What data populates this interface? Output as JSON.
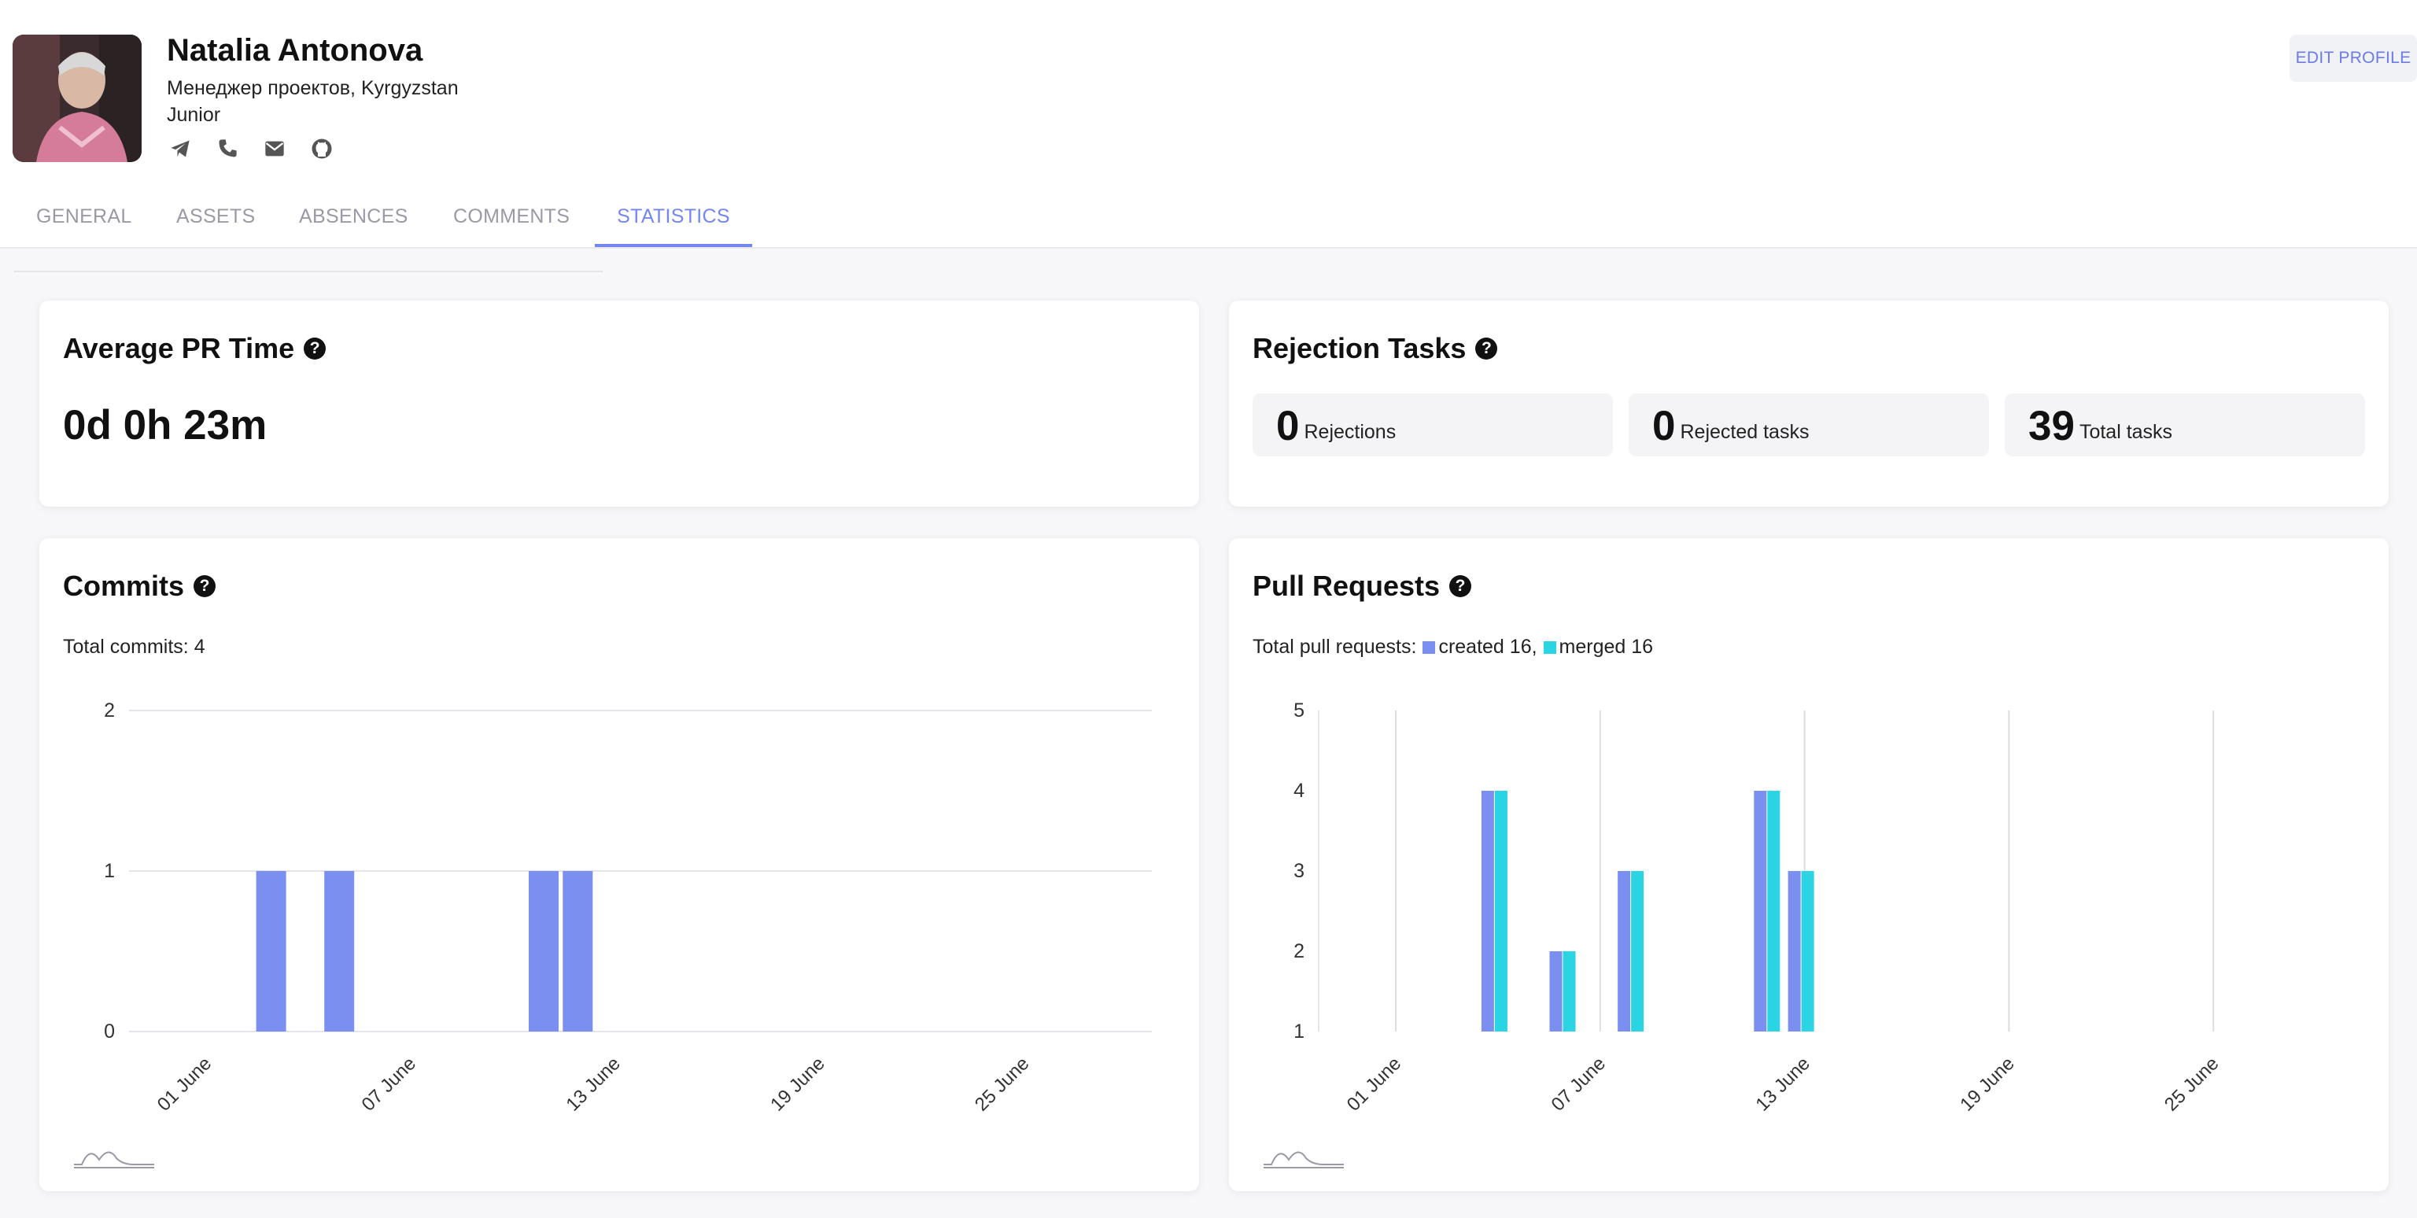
{
  "profile": {
    "name": "Natalia Antonova",
    "subline": "Менеджер проектов, Kyrgyzstan",
    "level": "Junior",
    "contact_icons": [
      "telegram-icon",
      "phone-icon",
      "mail-icon",
      "github-icon"
    ],
    "edit_label": "EDIT PROFILE"
  },
  "tabs": [
    {
      "label": "GENERAL",
      "active": false
    },
    {
      "label": "ASSETS",
      "active": false
    },
    {
      "label": "ABSENCES",
      "active": false
    },
    {
      "label": "COMMENTS",
      "active": false
    },
    {
      "label": "STATISTICS",
      "active": true
    }
  ],
  "avg_pr": {
    "title": "Average PR Time",
    "value": "0d 0h 23m"
  },
  "rejection": {
    "title": "Rejection Tasks",
    "stats": [
      {
        "value": "0",
        "label": "Rejections"
      },
      {
        "value": "0",
        "label": "Rejected tasks"
      },
      {
        "value": "39",
        "label": "Total tasks"
      }
    ]
  },
  "commits": {
    "title": "Commits",
    "total_text": "Total commits: 4"
  },
  "pull_requests": {
    "title": "Pull Requests",
    "total_prefix": "Total pull requests:",
    "created_text": "created 16,",
    "merged_text": "merged 16"
  },
  "colors": {
    "accent": "#7486ef",
    "created": "#7b8ff0",
    "merged": "#2ad4e3"
  },
  "chart_data": [
    {
      "type": "bar",
      "title": "Commits",
      "x_tick_labels": [
        "01 June",
        "07 June",
        "13 June",
        "19 June",
        "25 June"
      ],
      "x": [
        "03 June",
        "05 June",
        "11 June",
        "12 June"
      ],
      "series": [
        {
          "values": [
            1,
            1,
            1,
            1
          ]
        }
      ],
      "y_ticks": [
        0,
        1,
        2
      ],
      "ylim": [
        0,
        2
      ],
      "grid": true
    },
    {
      "type": "bar",
      "title": "Pull Requests",
      "x_tick_labels": [
        "01 June",
        "07 June",
        "13 June",
        "19 June",
        "25 June"
      ],
      "x": [
        "04 June",
        "06 June",
        "08 June",
        "12 June",
        "13 June"
      ],
      "series": [
        {
          "name": "created",
          "values": [
            4,
            2,
            3,
            4,
            3
          ]
        },
        {
          "name": "merged",
          "values": [
            4,
            2,
            3,
            4,
            3
          ]
        }
      ],
      "y_ticks": [
        1,
        2,
        3,
        4,
        5
      ],
      "ylim": [
        1,
        5
      ],
      "grid": true
    }
  ]
}
